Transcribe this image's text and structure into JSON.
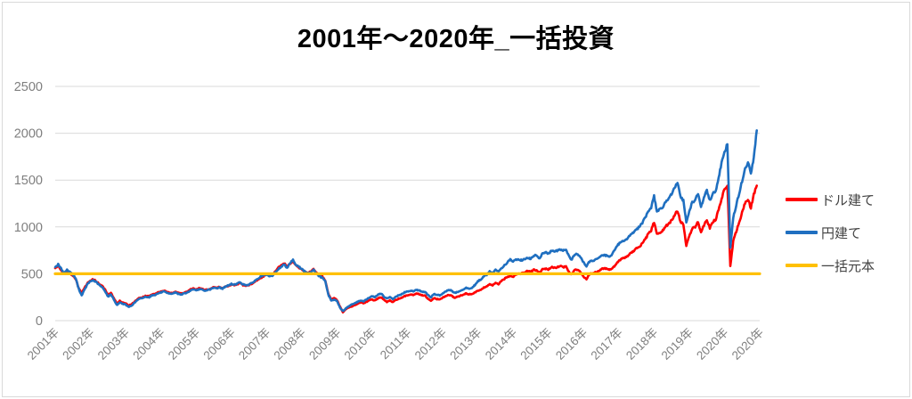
{
  "chart_data": {
    "type": "line",
    "title": "2001年～2020年_一括投資",
    "xlabel": "",
    "ylabel": "",
    "x_start_year": 2001,
    "x_end_year": 2021,
    "frequency": "monthly",
    "ylim": [
      0,
      2500
    ],
    "y_ticks": [
      "0",
      "500",
      "1000",
      "1500",
      "2000",
      "2500"
    ],
    "grid": "horizontal",
    "legend_position": "right",
    "x_tick_labels": [
      "2001年",
      "2002年",
      "2003年",
      "2004年",
      "2005年",
      "2006年",
      "2007年",
      "2008年",
      "2009年",
      "2010年",
      "2011年",
      "2012年",
      "2013年",
      "2014年",
      "2015年",
      "2016年",
      "2017年",
      "2018年",
      "2019年",
      "2020年",
      "2020年"
    ],
    "series": [
      {
        "name": "ドル建て",
        "color": "#ff0000",
        "values": [
          560,
          590,
          540,
          500,
          530,
          510,
          480,
          445,
          350,
          290,
          350,
          400,
          430,
          440,
          420,
          390,
          370,
          330,
          270,
          295,
          240,
          180,
          210,
          195,
          185,
          160,
          175,
          200,
          230,
          245,
          255,
          265,
          260,
          280,
          285,
          300,
          310,
          320,
          305,
          295,
          300,
          310,
          295,
          290,
          300,
          310,
          330,
          345,
          330,
          345,
          340,
          325,
          335,
          340,
          355,
          350,
          360,
          345,
          365,
          370,
          385,
          380,
          390,
          400,
          380,
          375,
          380,
          395,
          415,
          435,
          455,
          470,
          500,
          480,
          490,
          525,
          565,
          590,
          615,
          575,
          605,
          635,
          585,
          565,
          545,
          520,
          505,
          525,
          550,
          510,
          480,
          470,
          430,
          290,
          230,
          240,
          220,
          150,
          90,
          120,
          140,
          150,
          165,
          180,
          195,
          185,
          200,
          215,
          225,
          215,
          240,
          250,
          220,
          200,
          215,
          195,
          220,
          235,
          240,
          260,
          270,
          280,
          275,
          290,
          280,
          270,
          265,
          230,
          210,
          240,
          230,
          225,
          245,
          260,
          275,
          265,
          245,
          255,
          265,
          275,
          290,
          280,
          285,
          300,
          320,
          330,
          350,
          365,
          390,
          375,
          400,
          390,
          420,
          445,
          465,
          480,
          470,
          495,
          500,
          505,
          515,
          530,
          520,
          545,
          535,
          510,
          550,
          555,
          540,
          575,
          565,
          570,
          585,
          570,
          580,
          520,
          495,
          545,
          540,
          515,
          470,
          445,
          495,
          505,
          515,
          525,
          550,
          560,
          555,
          545,
          565,
          600,
          640,
          660,
          670,
          690,
          720,
          740,
          770,
          790,
          820,
          870,
          920,
          960,
          1050,
          920,
          940,
          960,
          1010,
          1030,
          1070,
          1130,
          1170,
          1060,
          1020,
          800,
          900,
          980,
          1000,
          1060,
          940,
          1020,
          1080,
          990,
          1050,
          1080,
          1180,
          1300,
          1400,
          1450,
          580,
          850,
          950,
          1050,
          1150,
          1250,
          1300,
          1200,
          1350,
          1440
        ]
      },
      {
        "name": "円建て",
        "color": "#1f6fc0",
        "values": [
          570,
          600,
          555,
          510,
          540,
          520,
          490,
          450,
          340,
          270,
          330,
          390,
          420,
          430,
          410,
          380,
          355,
          315,
          255,
          280,
          225,
          165,
          195,
          180,
          170,
          145,
          160,
          190,
          220,
          235,
          245,
          255,
          250,
          270,
          275,
          290,
          300,
          310,
          295,
          285,
          290,
          300,
          285,
          280,
          290,
          300,
          320,
          335,
          320,
          335,
          330,
          315,
          330,
          335,
          350,
          345,
          355,
          340,
          365,
          375,
          390,
          385,
          395,
          410,
          385,
          380,
          385,
          400,
          425,
          445,
          470,
          485,
          490,
          470,
          480,
          515,
          550,
          575,
          600,
          565,
          615,
          650,
          595,
          575,
          550,
          525,
          500,
          520,
          545,
          505,
          470,
          460,
          420,
          280,
          215,
          225,
          210,
          140,
          100,
          130,
          155,
          170,
          185,
          200,
          215,
          205,
          225,
          245,
          260,
          250,
          280,
          290,
          255,
          235,
          250,
          230,
          255,
          270,
          280,
          300,
          310,
          320,
          315,
          330,
          320,
          310,
          305,
          270,
          250,
          285,
          275,
          270,
          290,
          310,
          330,
          320,
          295,
          305,
          315,
          330,
          350,
          340,
          350,
          380,
          420,
          440,
          470,
          490,
          530,
          510,
          540,
          525,
          560,
          590,
          620,
          650,
          630,
          655,
          650,
          645,
          655,
          670,
          660,
          690,
          700,
          660,
          720,
          730,
          710,
          745,
          735,
          745,
          765,
          745,
          760,
          690,
          650,
          710,
          705,
          675,
          620,
          580,
          630,
          640,
          650,
          660,
          690,
          700,
          695,
          685,
          720,
          780,
          820,
          845,
          860,
          880,
          915,
          940,
          975,
          1000,
          1040,
          1100,
          1160,
          1210,
          1330,
          1165,
          1190,
          1210,
          1270,
          1300,
          1350,
          1420,
          1465,
          1330,
          1280,
          1050,
          1160,
          1260,
          1290,
          1360,
          1210,
          1310,
          1390,
          1280,
          1350,
          1390,
          1520,
          1680,
          1800,
          1880,
          780,
          1100,
          1230,
          1360,
          1490,
          1620,
          1690,
          1560,
          1750,
          2030
        ]
      },
      {
        "name": "一括元本",
        "color": "#ffc000",
        "type": "constant",
        "value": 500
      }
    ]
  },
  "colors": {
    "grid": "#d9d9d9",
    "axis_text": "#7f7f7f",
    "legend_text": "#424242",
    "title_text": "#000000",
    "border": "#d9d9d9",
    "background": "#ffffff"
  }
}
